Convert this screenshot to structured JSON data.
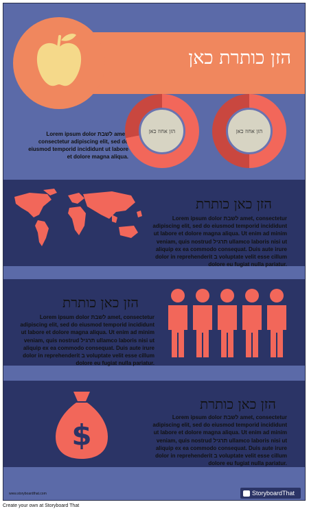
{
  "header": {
    "title": "הזן כותרת כאן"
  },
  "intro": {
    "text": "Lorem ipsum dolor לשבת amet, consectetur adipiscing elit, sed do eiusmod temporid incididunt ut labore et dolore magna aliqua."
  },
  "donuts": [
    {
      "label": "הזן אחוז כאן",
      "percent": 0.72
    },
    {
      "label": "הזן אחוז כאן",
      "percent": 0.5
    }
  ],
  "sections": [
    {
      "title": "הזן כאן כותרת",
      "text": "Lorem ipsum dolor לשבת amet, consectetur adipiscing elit, sed do eiusmod temporid incididunt ut labore et dolore magna aliqua. Ut enim ad minim veniam, quis nostrud תרגיל ullamco laboris nisi ut aliquip ex ea commodo consequat. Duis aute irure dolor in reprehenderit ב voluptate velit esse cillum dolore eu fugiat nulla pariatur.",
      "icon": "world-map-icon"
    },
    {
      "title": "הזן כאן כותרת",
      "text": "Lorem ipsum dolor לשבת amet, consectetur adipiscing elit, sed do eiusmod temporid incididunt ut labore et dolore magna aliqua. Ut enim ad minim veniam, quis nostrud תרגיל ullamco laboris nisi ut aliquip ex ea commodo consequat. Duis aute irure dolor in reprehenderit ב voluptate velit esse cillum dolore eu fugiat nulla pariatur.",
      "icon": "people-icon"
    },
    {
      "title": "הזן כאן כותרת",
      "text": "Lorem ipsum dolor לשבת amet, consectetur adipiscing elit, sed do eiusmod temporid incididunt ut labore et dolore magna aliqua. Ut enim ad minim veniam, quis nostrud תרגיל ullamco laboris nisi ut aliquip ex ea commodo consequat. Duis aute irure dolor in reprehenderit ב voluptate velit esse cillum dolore eu fugiat nulla pariatur.",
      "icon": "money-bag-icon"
    }
  ],
  "footer": {
    "site": "www.storyboardthat.com",
    "brand": "StoryboardThat",
    "caption": "Create your own at Storyboard That"
  },
  "colors": {
    "background": "#5b6aa8",
    "band": "#2b3466",
    "accent": "#f0875e",
    "coral": "#f2675a",
    "coral_dark": "#c9473f",
    "apple": "#f5d98a",
    "donut_center": "#d7d4c3"
  }
}
